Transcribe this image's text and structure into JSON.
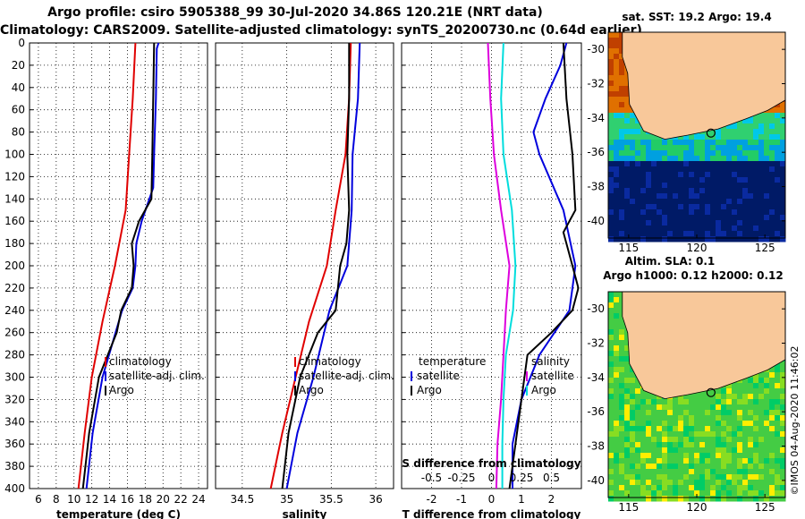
{
  "header": {
    "line1": "Argo profile: csiro 5905388_99 30-Jul-2020 34.86S 120.21E (NRT data)",
    "line2": "Climatology: CARS2009. Satellite-adjusted climatology: synTS_20200730.nc (0.64d earlier)"
  },
  "colors": {
    "climatology": "#e00000",
    "satellite": "#0000dd",
    "argo": "#000000",
    "s_diff_sat": "#dd00dd",
    "s_diff_argo": "#00dddd",
    "land": "#f8c89a"
  },
  "chart_data": [
    {
      "type": "line",
      "name": "temperature",
      "xlabel": "temperature (deg C)",
      "ylabel": "",
      "xlim": [
        5,
        25
      ],
      "ylim": [
        400,
        0
      ],
      "xticks": [
        6,
        8,
        10,
        12,
        14,
        16,
        18,
        20,
        22,
        24
      ],
      "yticks": [
        0,
        20,
        40,
        60,
        80,
        100,
        120,
        140,
        160,
        180,
        200,
        220,
        240,
        260,
        280,
        300,
        320,
        340,
        360,
        380,
        400
      ],
      "legend": [
        "climatology",
        "satellite-adj. clim.",
        "Argo"
      ],
      "legend_position": "lower-right",
      "series": [
        {
          "name": "climatology",
          "color": "#e00000",
          "depth": [
            0,
            50,
            100,
            150,
            200,
            250,
            300,
            350,
            400
          ],
          "values": [
            16.9,
            16.6,
            16.2,
            15.8,
            14.6,
            13.2,
            12.0,
            11.2,
            10.5
          ]
        },
        {
          "name": "satellite-adj. clim.",
          "color": "#0000dd",
          "depth": [
            0,
            5,
            50,
            100,
            130,
            160,
            180,
            200,
            220,
            240,
            300,
            350,
            400
          ],
          "values": [
            19.5,
            19.3,
            19.2,
            19.0,
            18.9,
            17.6,
            17.0,
            16.9,
            16.6,
            15.4,
            13.2,
            12.1,
            11.4
          ]
        },
        {
          "name": "Argo",
          "color": "#000000",
          "depth": [
            0,
            50,
            100,
            140,
            160,
            180,
            200,
            220,
            240,
            260,
            300,
            350,
            400
          ],
          "values": [
            19.0,
            18.9,
            18.8,
            18.7,
            17.3,
            16.5,
            16.7,
            16.5,
            15.3,
            14.8,
            12.8,
            11.7,
            11.0
          ]
        }
      ]
    },
    {
      "type": "line",
      "name": "salinity",
      "xlabel": "salinity",
      "ylabel": "",
      "xlim": [
        34.2,
        36.2
      ],
      "ylim": [
        400,
        0
      ],
      "xticks": [
        34.5,
        35,
        35.5,
        36
      ],
      "xtick_labels": [
        "34.5",
        "35",
        "35.5",
        "36"
      ],
      "legend": [
        "climatology",
        "satellite-adj. clim.",
        "Argo"
      ],
      "legend_position": "lower-right",
      "series": [
        {
          "name": "climatology",
          "color": "#e00000",
          "depth": [
            0,
            50,
            100,
            150,
            200,
            250,
            300,
            350,
            400
          ],
          "values": [
            35.72,
            35.7,
            35.66,
            35.55,
            35.45,
            35.25,
            35.1,
            34.95,
            34.82
          ]
        },
        {
          "name": "satellite-adj. clim.",
          "color": "#0000dd",
          "depth": [
            0,
            50,
            100,
            150,
            180,
            200,
            240,
            300,
            350,
            400
          ],
          "values": [
            35.82,
            35.8,
            35.74,
            35.73,
            35.7,
            35.68,
            35.48,
            35.3,
            35.12,
            35.0
          ]
        },
        {
          "name": "Argo",
          "color": "#000000",
          "depth": [
            0,
            50,
            100,
            150,
            180,
            200,
            240,
            260,
            300,
            350,
            400
          ],
          "values": [
            35.7,
            35.7,
            35.68,
            35.7,
            35.67,
            35.6,
            35.55,
            35.35,
            35.15,
            35.02,
            34.95
          ]
        }
      ]
    },
    {
      "type": "line",
      "name": "difference",
      "xlabel": "T difference from climatology",
      "top_axis_label": "S difference from climatology",
      "xlim": [
        -3,
        3
      ],
      "ylim": [
        400,
        0
      ],
      "xticks": [
        -2,
        -1,
        0,
        1,
        2
      ],
      "xtick_labels": [
        "-2",
        "-1",
        "0",
        "1",
        "2"
      ],
      "s_xlim": [
        -0.75,
        0.75
      ],
      "s_xticks": [
        -0.5,
        -0.25,
        0,
        0.25,
        0.5
      ],
      "s_xtick_labels": [
        "-0.5",
        "-0.25",
        "0",
        "0.25",
        "0.5"
      ],
      "legend_temperature": {
        "title": "temperature",
        "entries": [
          "satellite",
          "Argo"
        ]
      },
      "legend_salinity": {
        "title": "salinity",
        "entries": [
          "satellite",
          "Argo"
        ]
      },
      "series": [
        {
          "name": "temperature satellite",
          "color": "#0000dd",
          "depth": [
            0,
            20,
            50,
            80,
            100,
            150,
            200,
            220,
            240,
            280,
            320,
            360,
            400
          ],
          "values": [
            2.5,
            2.3,
            1.8,
            1.4,
            1.6,
            2.4,
            2.8,
            2.7,
            2.6,
            1.6,
            1.0,
            0.7,
            0.7
          ]
        },
        {
          "name": "temperature Argo",
          "color": "#000000",
          "depth": [
            0,
            50,
            100,
            150,
            170,
            200,
            220,
            240,
            260,
            280,
            320,
            360,
            400
          ],
          "values": [
            2.4,
            2.5,
            2.7,
            2.8,
            2.4,
            2.7,
            2.9,
            2.7,
            2.0,
            1.2,
            1.0,
            0.8,
            0.6
          ]
        },
        {
          "name": "salinity satellite",
          "color": "#dd00dd",
          "depth": [
            0,
            50,
            100,
            150,
            200,
            240,
            280,
            320,
            360,
            400
          ],
          "values": [
            -0.03,
            -0.01,
            0.02,
            0.08,
            0.15,
            0.12,
            0.1,
            0.08,
            0.05,
            0.04
          ]
        },
        {
          "name": "salinity Argo",
          "color": "#00dddd",
          "depth": [
            0,
            50,
            100,
            150,
            200,
            240,
            280,
            320,
            360,
            400
          ],
          "values": [
            0.1,
            0.08,
            0.1,
            0.17,
            0.2,
            0.18,
            0.12,
            0.1,
            0.09,
            0.09
          ]
        }
      ]
    },
    {
      "type": "heatmap",
      "name": "sst-map",
      "title": "sat. SST: 19.2  Argo: 19.4",
      "xticks": [
        115,
        120,
        125
      ],
      "yticks": [
        -30,
        -32,
        -34,
        -36,
        -38,
        -40
      ],
      "xlim": [
        113.5,
        126.5
      ],
      "ylim": [
        -41,
        -29
      ]
    },
    {
      "type": "heatmap",
      "name": "sla-map",
      "title_line1": "Altim. SLA: 0.1",
      "title_line2": "Argo h1000: 0.12 h2000: 0.12",
      "xticks": [
        115,
        120,
        125
      ],
      "yticks": [
        -30,
        -32,
        -34,
        -36,
        -38,
        -40
      ],
      "xlim": [
        113.5,
        126.5
      ],
      "ylim": [
        -41,
        -29
      ]
    }
  ],
  "credit": "©IMOS 04-Aug-2020 11:46:02"
}
